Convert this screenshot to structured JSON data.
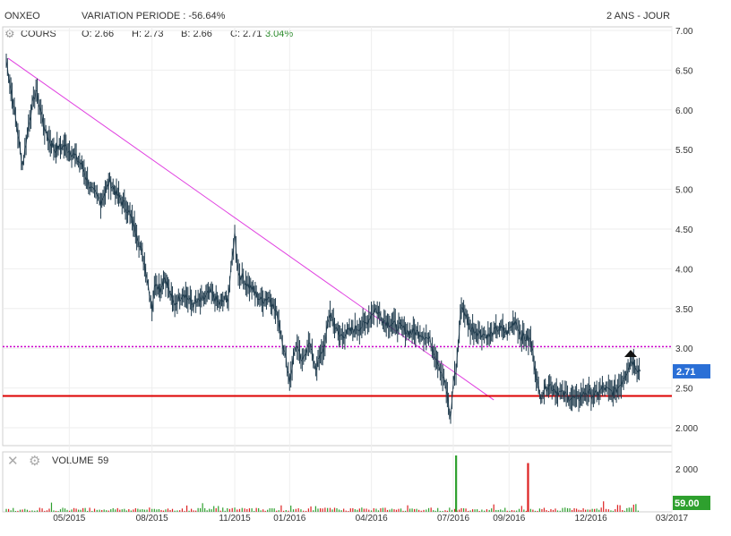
{
  "header": {
    "ticker": "ONXEO",
    "variation": "VARIATION PERIODE : -56.64%",
    "period": "2 ANS - JOUR"
  },
  "ohlc": {
    "series_label": "COURS",
    "open": "O: 2.66",
    "high": "H: 2.73",
    "low": "B: 2.66",
    "close": "C: 2.71",
    "change": "3.04%"
  },
  "volume_panel": {
    "label": "VOLUME",
    "value": "59",
    "last_badge": "59.00"
  },
  "colors": {
    "price_line": "#1f3b4d",
    "trendline": "#e040e0",
    "resistance": "#cc00cc",
    "support": "#dd0000",
    "last_badge": "#2a6fd6",
    "volume_badge": "#2ea02e",
    "volume_up": "#2ea02e",
    "volume_down": "#dd2222"
  },
  "icons": [
    "gear-icon",
    "close-icon",
    "arrow-up-icon"
  ],
  "chart_data": {
    "type": "line",
    "ylim": [
      1.9,
      7.05
    ],
    "y_ticks": [
      "7.00",
      "6.50",
      "6.00",
      "5.50",
      "5.00",
      "4.50",
      "4.00",
      "3.50",
      "3.00",
      "2.50",
      "2.000"
    ],
    "x_ticks": [
      "05/2015",
      "08/2015",
      "11/2015",
      "01/2016",
      "04/2016",
      "07/2016",
      "09/2016",
      "12/2016",
      "03/2017"
    ],
    "last_value": "2.71",
    "series": [
      {
        "x": [
          "2015-02-20",
          "2015-03-01",
          "2015-03-10",
          "2015-03-18",
          "2015-03-25",
          "2015-04-05",
          "2015-04-15",
          "2015-04-25",
          "2015-05-05",
          "2015-05-15",
          "2015-05-25",
          "2015-06-05",
          "2015-06-15",
          "2015-06-25",
          "2015-07-05",
          "2015-07-15",
          "2015-07-25",
          "2015-08-01",
          "2015-08-05",
          "2015-08-10",
          "2015-08-15",
          "2015-08-25",
          "2015-09-05",
          "2015-09-15",
          "2015-09-25",
          "2015-10-05",
          "2015-10-15",
          "2015-10-25",
          "2015-11-01",
          "2015-11-05",
          "2015-11-12",
          "2015-11-20",
          "2015-11-30",
          "2015-12-10",
          "2015-12-20",
          "2016-01-01",
          "2016-01-08",
          "2016-01-15",
          "2016-01-22",
          "2016-01-30",
          "2016-02-08",
          "2016-02-15",
          "2016-02-25",
          "2016-03-05",
          "2016-03-15",
          "2016-03-25",
          "2016-04-05",
          "2016-04-15",
          "2016-04-25",
          "2016-05-05",
          "2016-05-15",
          "2016-05-25",
          "2016-06-05",
          "2016-06-15",
          "2016-06-22",
          "2016-06-28",
          "2016-07-01",
          "2016-07-04",
          "2016-07-10",
          "2016-07-20",
          "2016-07-30",
          "2016-08-10",
          "2016-08-20",
          "2016-08-30",
          "2016-09-08",
          "2016-09-15",
          "2016-09-25",
          "2016-10-05",
          "2016-10-15",
          "2016-10-25",
          "2016-11-05",
          "2016-11-15",
          "2016-11-25",
          "2016-12-05",
          "2016-12-15",
          "2016-12-22",
          "2016-12-28",
          "2017-01-05",
          "2017-01-15",
          "2017-01-25"
        ],
        "y": [
          6.62,
          6.0,
          5.3,
          5.9,
          6.25,
          5.7,
          5.5,
          5.55,
          5.45,
          5.3,
          5.0,
          4.85,
          5.1,
          4.9,
          4.75,
          4.45,
          4.0,
          3.5,
          3.85,
          3.75,
          3.9,
          3.55,
          3.7,
          3.55,
          3.6,
          3.7,
          3.55,
          3.65,
          4.45,
          3.95,
          3.85,
          3.75,
          3.6,
          3.65,
          3.35,
          2.6,
          3.05,
          2.8,
          3.1,
          2.75,
          3.0,
          3.45,
          3.15,
          3.2,
          3.25,
          3.3,
          3.5,
          3.35,
          3.3,
          3.25,
          3.2,
          3.2,
          3.1,
          2.8,
          2.55,
          2.1,
          2.6,
          2.7,
          3.55,
          3.25,
          3.2,
          3.15,
          3.25,
          3.2,
          3.35,
          3.15,
          3.1,
          2.4,
          2.55,
          2.45,
          2.4,
          2.35,
          2.45,
          2.4,
          2.5,
          2.45,
          2.45,
          2.6,
          2.85,
          2.71
        ]
      }
    ],
    "annotations": {
      "trendline": {
        "from": [
          "2015-02-22",
          6.65
        ],
        "to": [
          "2016-08-15",
          2.35
        ]
      },
      "resistance": 3.02,
      "support": 2.4
    },
    "volume": {
      "ylim": [
        0,
        2600
      ],
      "y_ticks": [
        "2 000"
      ],
      "spikes": [
        {
          "x": "2016-07-04",
          "value": 2600,
          "direction": "up"
        },
        {
          "x": "2016-09-22",
          "value": 2250,
          "direction": "down"
        }
      ]
    }
  }
}
